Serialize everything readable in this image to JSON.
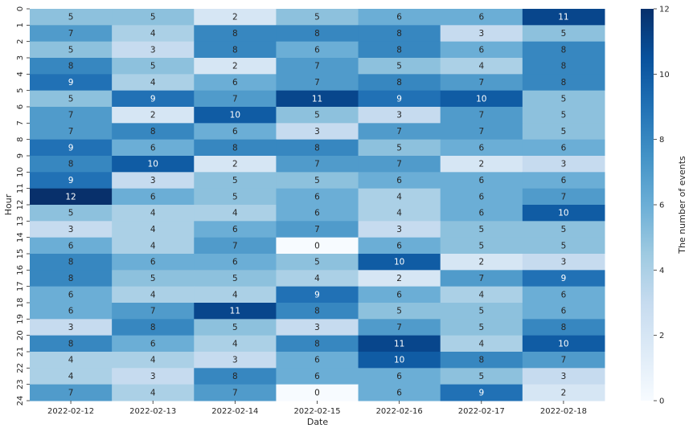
{
  "chart_data": {
    "type": "heatmap",
    "xlabel": "Date",
    "ylabel": "Hour",
    "x": [
      "2022-02-12",
      "2022-02-13",
      "2022-02-14",
      "2022-02-15",
      "2022-02-16",
      "2022-02-17",
      "2022-02-18"
    ],
    "y_ticks": [
      "0",
      "1",
      "2",
      "3",
      "4",
      "5",
      "6",
      "7",
      "8",
      "9",
      "10",
      "11",
      "12",
      "13",
      "14",
      "15",
      "16",
      "17",
      "18",
      "19",
      "20",
      "21",
      "22",
      "23",
      "24"
    ],
    "values": [
      [
        5,
        5,
        2,
        5,
        6,
        6,
        11
      ],
      [
        7,
        4,
        8,
        8,
        8,
        3,
        5
      ],
      [
        5,
        3,
        8,
        6,
        8,
        6,
        8
      ],
      [
        8,
        5,
        2,
        7,
        5,
        4,
        8
      ],
      [
        9,
        4,
        6,
        7,
        8,
        7,
        8
      ],
      [
        5,
        9,
        7,
        11,
        9,
        10,
        5
      ],
      [
        7,
        2,
        10,
        5,
        3,
        7,
        5
      ],
      [
        7,
        8,
        6,
        3,
        7,
        7,
        5
      ],
      [
        9,
        6,
        8,
        8,
        5,
        6,
        6
      ],
      [
        8,
        10,
        2,
        7,
        7,
        2,
        3
      ],
      [
        9,
        3,
        5,
        5,
        6,
        6,
        6
      ],
      [
        12,
        6,
        5,
        6,
        4,
        6,
        7
      ],
      [
        5,
        4,
        4,
        6,
        4,
        6,
        10
      ],
      [
        3,
        4,
        6,
        7,
        3,
        5,
        5
      ],
      [
        6,
        4,
        7,
        0,
        6,
        5,
        5
      ],
      [
        8,
        6,
        6,
        5,
        10,
        2,
        3
      ],
      [
        8,
        5,
        5,
        4,
        2,
        7,
        9
      ],
      [
        6,
        4,
        4,
        9,
        6,
        4,
        6
      ],
      [
        6,
        7,
        11,
        8,
        5,
        5,
        6
      ],
      [
        3,
        8,
        5,
        3,
        7,
        5,
        8
      ],
      [
        8,
        6,
        4,
        8,
        11,
        4,
        10
      ],
      [
        4,
        4,
        3,
        6,
        10,
        8,
        7
      ],
      [
        4,
        3,
        8,
        6,
        6,
        5,
        3
      ],
      [
        7,
        4,
        7,
        0,
        6,
        9,
        2
      ]
    ],
    "colorbar": {
      "label": "The number of events",
      "range": [
        0,
        12
      ],
      "ticks": [
        0,
        2,
        4,
        6,
        8,
        10,
        12
      ]
    },
    "colormap": "Blues"
  }
}
